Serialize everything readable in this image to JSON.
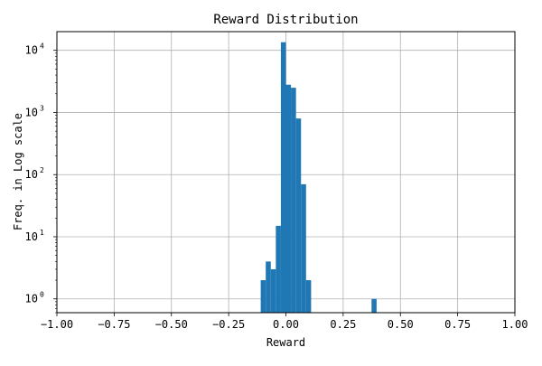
{
  "chart_data": {
    "type": "bar",
    "title": "Reward Distribution",
    "xlabel": "Reward",
    "ylabel": "Freq. in Log scale",
    "xlim": [
      -1.0,
      1.0
    ],
    "ylim": [
      0.6,
      20000
    ],
    "yscale": "log",
    "grid": true,
    "bar_color": "#1f77b4",
    "x_ticks": [
      {
        "value": -1.0,
        "label": "−1.00"
      },
      {
        "value": -0.75,
        "label": "−0.75"
      },
      {
        "value": -0.5,
        "label": "−0.50"
      },
      {
        "value": -0.25,
        "label": "−0.25"
      },
      {
        "value": 0.0,
        "label": "0.00"
      },
      {
        "value": 0.25,
        "label": "0.25"
      },
      {
        "value": 0.5,
        "label": "0.50"
      },
      {
        "value": 0.75,
        "label": "0.75"
      },
      {
        "value": 1.0,
        "label": "1.00"
      }
    ],
    "y_ticks": [
      {
        "value": 1,
        "base": "10",
        "exp": "0"
      },
      {
        "value": 10,
        "base": "10",
        "exp": "1"
      },
      {
        "value": 100,
        "base": "10",
        "exp": "2"
      },
      {
        "value": 1000,
        "base": "10",
        "exp": "3"
      },
      {
        "value": 10000,
        "base": "10",
        "exp": "4"
      }
    ],
    "bins": [
      {
        "x0": -0.11,
        "x1": -0.088,
        "count": 2
      },
      {
        "x0": -0.088,
        "x1": -0.066,
        "count": 4
      },
      {
        "x0": -0.066,
        "x1": -0.044,
        "count": 3
      },
      {
        "x0": -0.044,
        "x1": -0.022,
        "count": 15
      },
      {
        "x0": -0.022,
        "x1": 0.0,
        "count": 13500
      },
      {
        "x0": 0.0,
        "x1": 0.022,
        "count": 2800
      },
      {
        "x0": 0.022,
        "x1": 0.044,
        "count": 2500
      },
      {
        "x0": 0.044,
        "x1": 0.066,
        "count": 800
      },
      {
        "x0": 0.066,
        "x1": 0.088,
        "count": 70
      },
      {
        "x0": 0.088,
        "x1": 0.11,
        "count": 2
      },
      {
        "x0": 0.374,
        "x1": 0.396,
        "count": 1
      }
    ]
  }
}
